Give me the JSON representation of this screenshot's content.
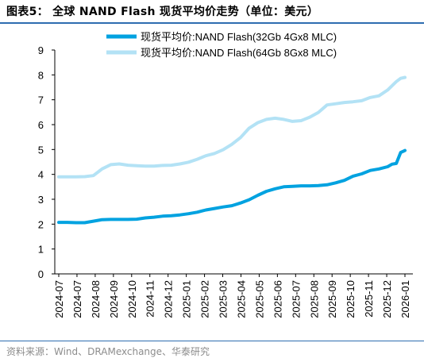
{
  "page": {
    "title": "图表5： 全球 NAND Flash 现货平均价走势（单位：美元）",
    "source": "资料来源：Wind、DRAMexchange、华泰研究"
  },
  "colors": {
    "accent": "#2e6db0",
    "series_32gb": "#00a2e0",
    "series_64gb": "#b3e2f5"
  },
  "chart_data": {
    "type": "line",
    "title": "",
    "xlabel": "",
    "ylabel": "",
    "ylim": [
      0,
      9
    ],
    "yticks": [
      0,
      1,
      2,
      3,
      4,
      5,
      6,
      7,
      8,
      9
    ],
    "grid": false,
    "legend_position": "top-center",
    "x_tick_labels": [
      "2024-07",
      "2024-07",
      "2024-08",
      "2024-09",
      "2024-10",
      "2024-11",
      "2024-12",
      "2025-01",
      "2025-02",
      "2025-03",
      "2025-04",
      "2025-05",
      "2025-06",
      "2025-07",
      "2025-08",
      "2025-09",
      "2025-10",
      "2025-11",
      "2025-12",
      "2026-01"
    ],
    "x": [
      "2024-07-01",
      "2024-07-15",
      "2024-07-29",
      "2024-08-12",
      "2024-08-26",
      "2024-09-09",
      "2024-09-23",
      "2024-10-07",
      "2024-10-21",
      "2024-11-04",
      "2024-11-18",
      "2024-12-02",
      "2024-12-16",
      "2024-12-30",
      "2025-01-13",
      "2025-01-27",
      "2025-02-10",
      "2025-02-24",
      "2025-03-10",
      "2025-03-24",
      "2025-04-07",
      "2025-04-21",
      "2025-05-05",
      "2025-05-19",
      "2025-06-02",
      "2025-06-16",
      "2025-06-30",
      "2025-07-14",
      "2025-07-28",
      "2025-08-11",
      "2025-08-25",
      "2025-09-08",
      "2025-09-22",
      "2025-10-06",
      "2025-10-20",
      "2025-11-03",
      "2025-11-17",
      "2025-12-01",
      "2025-12-15",
      "2025-12-22",
      "2025-12-29",
      "2026-01-05",
      "2026-01-12"
    ],
    "series": [
      {
        "name": "现货平均价:NAND Flash(32Gb 4Gx8 MLC)",
        "color": "#00a2e0",
        "values": [
          2.07,
          2.07,
          2.06,
          2.06,
          2.12,
          2.18,
          2.19,
          2.19,
          2.19,
          2.2,
          2.25,
          2.28,
          2.32,
          2.34,
          2.37,
          2.42,
          2.48,
          2.57,
          2.63,
          2.69,
          2.74,
          2.85,
          2.98,
          3.16,
          3.32,
          3.42,
          3.5,
          3.52,
          3.54,
          3.54,
          3.55,
          3.58,
          3.66,
          3.76,
          3.93,
          4.02,
          4.16,
          4.22,
          4.31,
          4.41,
          4.44,
          4.88,
          4.96
        ]
      },
      {
        "name": "现货平均价:NAND Flash(64Gb 8Gx8 MLC)",
        "color": "#b3e2f5",
        "values": [
          3.9,
          3.9,
          3.9,
          3.91,
          3.95,
          4.22,
          4.39,
          4.42,
          4.37,
          4.35,
          4.33,
          4.33,
          4.36,
          4.37,
          4.42,
          4.49,
          4.61,
          4.75,
          4.84,
          4.99,
          5.21,
          5.48,
          5.86,
          6.08,
          6.21,
          6.26,
          6.21,
          6.13,
          6.16,
          6.3,
          6.49,
          6.79,
          6.84,
          6.89,
          6.92,
          6.96,
          7.09,
          7.16,
          7.39,
          7.56,
          7.73,
          7.86,
          7.9
        ]
      }
    ]
  }
}
